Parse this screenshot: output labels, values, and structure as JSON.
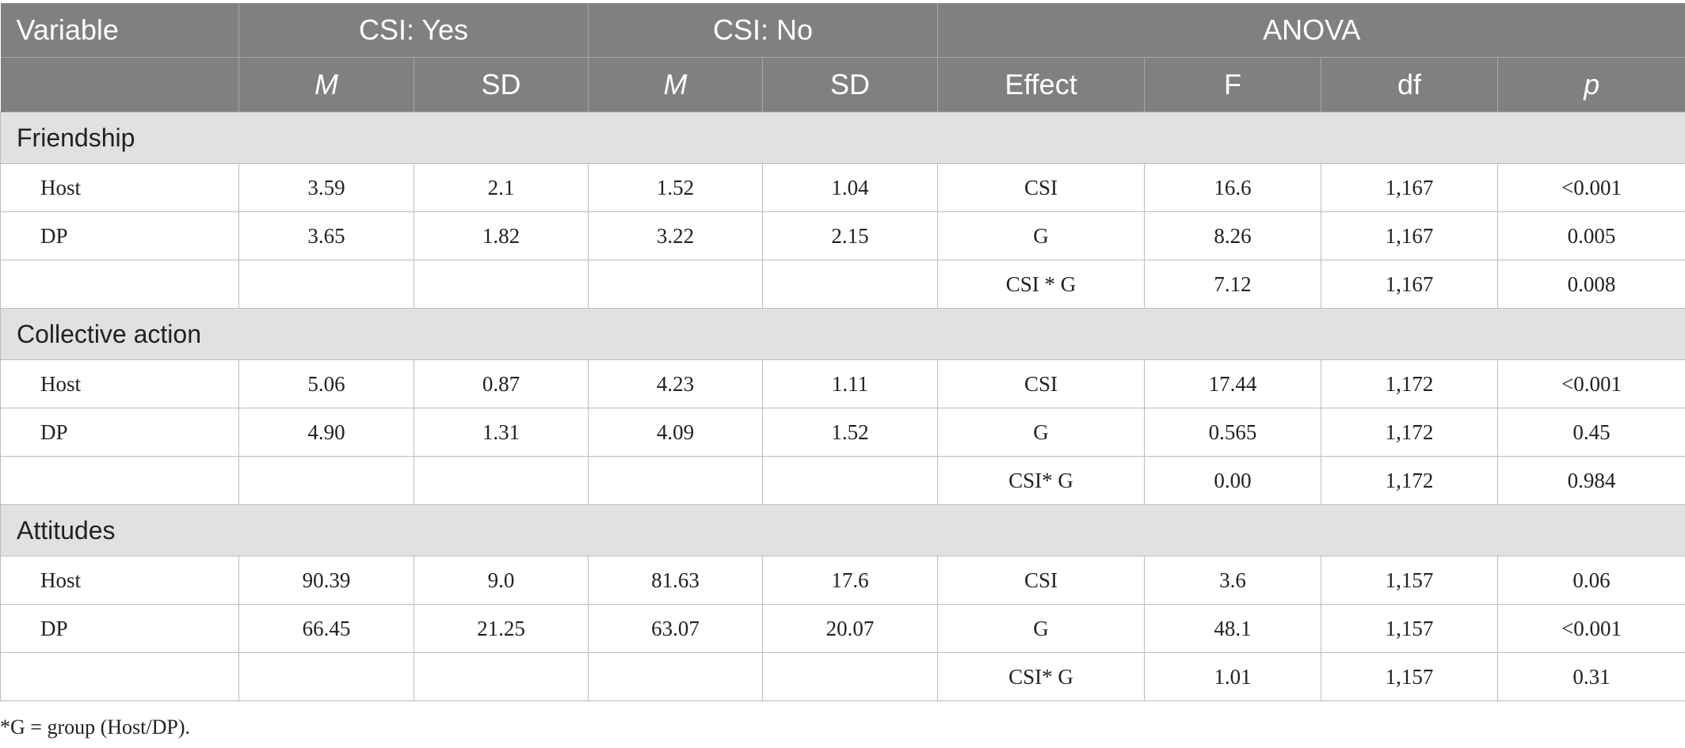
{
  "header": {
    "variable": "Variable",
    "csi_yes": "CSI: Yes",
    "csi_no": "CSI: No",
    "anova": "ANOVA",
    "m1": "M",
    "sd1": "SD",
    "m2": "M",
    "sd2": "SD",
    "effect": "Effect",
    "f": "F",
    "df": "df",
    "p": "p"
  },
  "sections": [
    {
      "title": "Friendship",
      "rows": [
        [
          "Host",
          "3.59",
          "2.1",
          "1.52",
          "1.04",
          "CSI",
          "16.6",
          "1,167",
          "<0.001"
        ],
        [
          "DP",
          "3.65",
          "1.82",
          "3.22",
          "2.15",
          "G",
          "8.26",
          "1,167",
          "0.005"
        ],
        [
          "",
          "",
          "",
          "",
          "",
          "CSI * G",
          "7.12",
          "1,167",
          "0.008"
        ]
      ]
    },
    {
      "title": "Collective action",
      "rows": [
        [
          "Host",
          "5.06",
          "0.87",
          "4.23",
          "1.11",
          "CSI",
          "17.44",
          "1,172",
          "<0.001"
        ],
        [
          "DP",
          "4.90",
          "1.31",
          "4.09",
          "1.52",
          "G",
          "0.565",
          "1,172",
          "0.45"
        ],
        [
          "",
          "",
          "",
          "",
          "",
          "CSI* G",
          "0.00",
          "1,172",
          "0.984"
        ]
      ]
    },
    {
      "title": "Attitudes",
      "rows": [
        [
          "Host",
          "90.39",
          "9.0",
          "81.63",
          "17.6",
          "CSI",
          "3.6",
          "1,157",
          "0.06"
        ],
        [
          "DP",
          "66.45",
          "21.25",
          "63.07",
          "20.07",
          "G",
          "48.1",
          "1,157",
          "<0.001"
        ],
        [
          "",
          "",
          "",
          "",
          "",
          "CSI* G",
          "1.01",
          "1,157",
          "0.31"
        ]
      ]
    }
  ],
  "footnote": "*G = group (Host/DP)."
}
